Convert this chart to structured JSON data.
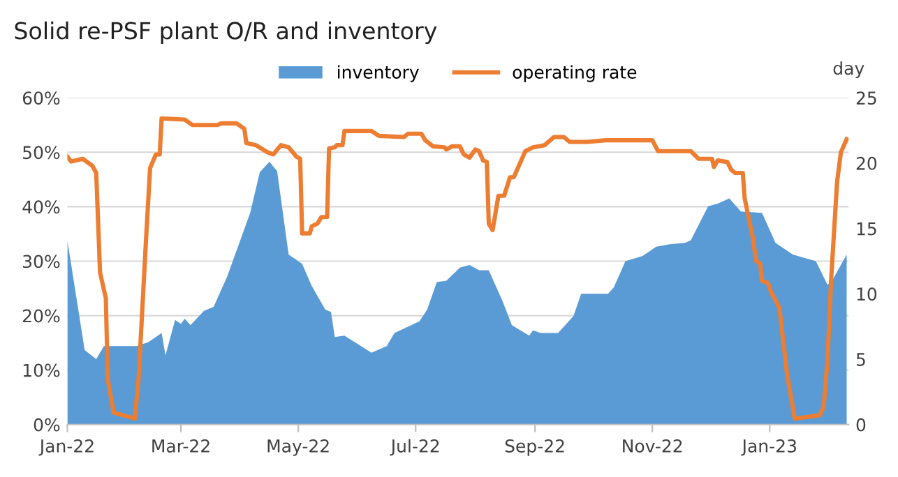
{
  "chart_data": {
    "type": "line",
    "title": "Solid re-PSF plant O/R and inventory",
    "y2label": "day",
    "series": [
      {
        "name": "inventory",
        "type": "area",
        "axis": "y2",
        "color": "#5b9bd5",
        "x": [
          "2022-01-01",
          "2022-01-10",
          "2022-01-16",
          "2022-01-20",
          "2022-02-06",
          "2022-02-12",
          "2022-02-19",
          "2022-02-21",
          "2022-02-26",
          "2022-03-01",
          "2022-03-03",
          "2022-03-06",
          "2022-03-13",
          "2022-03-18",
          "2022-03-25",
          "2022-04-06",
          "2022-04-11",
          "2022-04-16",
          "2022-04-20",
          "2022-04-26",
          "2022-05-03",
          "2022-05-08",
          "2022-05-15",
          "2022-05-18",
          "2022-05-20",
          "2022-05-25",
          "2022-06-08",
          "2022-06-16",
          "2022-06-20",
          "2022-07-03",
          "2022-07-07",
          "2022-07-12",
          "2022-07-17",
          "2022-07-24",
          "2022-07-29",
          "2022-08-03",
          "2022-08-08",
          "2022-08-15",
          "2022-08-20",
          "2022-08-29",
          "2022-08-31",
          "2022-09-04",
          "2022-09-13",
          "2022-09-21",
          "2022-09-25",
          "2022-10-09",
          "2022-10-12",
          "2022-10-18",
          "2022-10-27",
          "2022-11-03",
          "2022-11-10",
          "2022-11-18",
          "2022-11-21",
          "2022-11-30",
          "2022-12-05",
          "2022-12-11",
          "2022-12-17",
          "2022-12-28",
          "2023-01-04",
          "2023-01-13",
          "2023-01-25",
          "2023-01-31",
          "2023-02-02",
          "2023-02-10"
        ],
        "values": [
          14.1,
          5.7,
          5.0,
          6.0,
          6.0,
          6.3,
          7.0,
          5.3,
          8.0,
          7.7,
          8.1,
          7.6,
          8.7,
          9.0,
          11.3,
          16.2,
          19.3,
          20.1,
          19.4,
          13.0,
          12.3,
          10.6,
          8.8,
          8.6,
          6.7,
          6.8,
          5.5,
          6.0,
          7.0,
          7.9,
          8.8,
          10.9,
          11.0,
          12.0,
          12.2,
          11.8,
          11.8,
          9.5,
          7.6,
          6.8,
          7.2,
          7.0,
          7.0,
          8.3,
          10.0,
          10.0,
          10.5,
          12.5,
          12.9,
          13.6,
          13.8,
          13.9,
          14.1,
          16.7,
          16.9,
          17.3,
          16.3,
          16.2,
          13.9,
          13.0,
          12.5,
          10.7,
          10.9,
          13.0
        ]
      },
      {
        "name": "operating rate",
        "axis": "y",
        "color": "#ed7d31",
        "x": [
          "2022-01-01",
          "2022-01-03",
          "2022-01-09",
          "2022-01-14",
          "2022-01-16",
          "2022-01-18",
          "2022-01-21",
          "2022-01-22",
          "2022-01-25",
          "2022-02-05",
          "2022-02-07",
          "2022-02-11",
          "2022-02-13",
          "2022-02-16",
          "2022-02-18",
          "2022-02-19",
          "2022-03-03",
          "2022-03-07",
          "2022-03-20",
          "2022-03-22",
          "2022-03-30",
          "2022-04-03",
          "2022-04-04",
          "2022-04-09",
          "2022-04-15",
          "2022-04-18",
          "2022-04-22",
          "2022-04-26",
          "2022-04-30",
          "2022-05-02",
          "2022-05-03",
          "2022-05-07",
          "2022-05-08",
          "2022-05-11",
          "2022-05-13",
          "2022-05-16",
          "2022-05-17",
          "2022-05-20",
          "2022-05-21",
          "2022-05-24",
          "2022-05-25",
          "2022-06-08",
          "2022-06-12",
          "2022-06-25",
          "2022-06-27",
          "2022-07-04",
          "2022-07-06",
          "2022-07-10",
          "2022-07-16",
          "2022-07-17",
          "2022-07-20",
          "2022-07-24",
          "2022-07-26",
          "2022-07-29",
          "2022-08-01",
          "2022-08-03",
          "2022-08-05",
          "2022-08-07",
          "2022-08-08",
          "2022-08-10",
          "2022-08-13",
          "2022-08-16",
          "2022-08-19",
          "2022-08-21",
          "2022-08-27",
          "2022-08-31",
          "2022-09-06",
          "2022-09-11",
          "2022-09-16",
          "2022-09-19",
          "2022-09-28",
          "2022-10-08",
          "2022-11-01",
          "2022-11-04",
          "2022-11-21",
          "2022-11-25",
          "2022-12-02",
          "2022-12-03",
          "2022-12-05",
          "2022-12-10",
          "2022-12-12",
          "2022-12-14",
          "2022-12-18",
          "2022-12-19",
          "2022-12-23",
          "2022-12-25",
          "2022-12-27",
          "2022-12-28",
          "2022-12-31",
          "2023-01-02",
          "2023-01-06",
          "2023-01-10",
          "2023-01-14",
          "2023-01-27",
          "2023-01-29",
          "2023-01-31",
          "2023-02-02",
          "2023-02-05",
          "2023-02-07",
          "2023-02-10"
        ],
        "values": [
          49.2,
          48.3,
          48.8,
          47.5,
          46.2,
          27.9,
          23.2,
          8.3,
          2.2,
          1.1,
          8.3,
          34.7,
          47.1,
          49.6,
          49.6,
          56.2,
          56.0,
          55.0,
          55.0,
          55.3,
          55.3,
          54.3,
          51.7,
          51.3,
          50.0,
          49.6,
          51.3,
          50.9,
          49.2,
          48.8,
          35.1,
          35.1,
          36.4,
          36.9,
          38.1,
          38.1,
          50.7,
          50.9,
          51.3,
          51.3,
          53.9,
          53.9,
          53.0,
          52.8,
          53.4,
          53.4,
          52.2,
          51.1,
          50.9,
          50.5,
          51.1,
          51.1,
          49.6,
          49.0,
          50.5,
          50.2,
          48.5,
          48.2,
          36.9,
          35.7,
          42.0,
          42.0,
          45.4,
          45.4,
          50.2,
          50.9,
          51.3,
          52.8,
          52.8,
          51.9,
          51.9,
          52.2,
          52.2,
          50.2,
          50.2,
          48.8,
          48.8,
          47.3,
          48.5,
          48.2,
          46.8,
          46.2,
          46.2,
          41.5,
          34.7,
          30.0,
          29.6,
          26.4,
          26.0,
          24.1,
          21.5,
          9.2,
          1.1,
          1.7,
          3.2,
          11.7,
          27.1,
          44.5,
          50.0,
          52.4
        ]
      }
    ],
    "xlim": [
      "2022-01-01",
      "2023-02-11"
    ],
    "xticks": [
      {
        "value": "2022-01-01",
        "label": "Jan-22"
      },
      {
        "value": "2022-03-01",
        "label": "Mar-22"
      },
      {
        "value": "2022-05-01",
        "label": "May-22"
      },
      {
        "value": "2022-07-01",
        "label": "Jul-22"
      },
      {
        "value": "2022-09-01",
        "label": "Sep-22"
      },
      {
        "value": "2022-11-01",
        "label": "Nov-22"
      },
      {
        "value": "2023-01-01",
        "label": "Jan-23"
      }
    ],
    "ylim": [
      0,
      60
    ],
    "yticks": [
      {
        "value": 0,
        "label": "0%"
      },
      {
        "value": 10,
        "label": "10%"
      },
      {
        "value": 20,
        "label": "20%"
      },
      {
        "value": 30,
        "label": "30%"
      },
      {
        "value": 40,
        "label": "40%"
      },
      {
        "value": 50,
        "label": "50%"
      },
      {
        "value": 60,
        "label": "60%"
      }
    ],
    "y2lim": [
      0,
      25
    ],
    "y2ticks": [
      0,
      5,
      10,
      15,
      20,
      25
    ],
    "grid": "y",
    "legend": "top"
  }
}
